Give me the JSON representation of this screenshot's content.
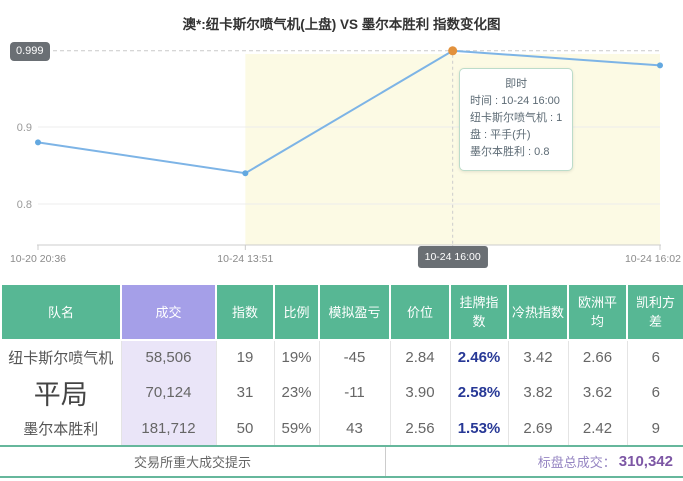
{
  "chart_data": {
    "type": "line",
    "title": "澳*:纽卡斯尔喷气机(上盘) VS 墨尔本胜利 指数变化图",
    "x": [
      "10-20 20:36",
      "10-24 13:51",
      "10-24 16:00",
      "10-24 16:02"
    ],
    "series": [
      {
        "name": "指数",
        "values": [
          0.88,
          0.84,
          0.999,
          0.98
        ]
      }
    ],
    "y_ticks": [
      0.9,
      0.8
    ],
    "y_max_line": 0.999,
    "ylim": [
      0.75,
      1.02
    ],
    "grid": true,
    "legend": "none",
    "active_index": 2,
    "highlight_from_index": 1,
    "line_color": "#7db4e6",
    "point_color": "#63a8e0",
    "active_point_color": "#e2913c",
    "highlight_color": "#fcfae4",
    "tooltip": {
      "title": "即时",
      "lines": [
        "时间 : 10-24 16:00",
        "纽卡斯尔喷气机 : 1",
        "盘 : 平手(升)",
        "墨尔本胜利 : 0.8"
      ]
    }
  },
  "table": {
    "headers": [
      "队名",
      "成交",
      "指数",
      "比例",
      "模拟盈亏",
      "价位",
      "挂牌指数",
      "冷热指数",
      "欧洲平均",
      "凯利方差"
    ],
    "rows": [
      {
        "large_team": false,
        "cells": [
          "纽卡斯尔喷气机",
          "58,506",
          "19",
          "19%",
          "-45",
          "2.84",
          "2.46%",
          "3.42",
          "2.66",
          "6"
        ]
      },
      {
        "large_team": true,
        "cells": [
          "平局",
          "70,124",
          "31",
          "23%",
          "-11",
          "3.90",
          "2.58%",
          "3.82",
          "3.62",
          "6"
        ]
      },
      {
        "large_team": false,
        "cells": [
          "墨尔本胜利",
          "181,712",
          "50",
          "59%",
          "43",
          "2.56",
          "1.53%",
          "2.69",
          "2.42",
          "9"
        ]
      }
    ]
  },
  "footer": {
    "notice": "交易所重大成交提示",
    "total_label": "标盘总成交：",
    "total_value": "310,342"
  },
  "colors": {
    "header_green": "#57b794",
    "header_purple": "#a59fe8",
    "volume_col_bg": "#eae5f8",
    "listing_index_navy": "#273896",
    "footer_border_green": "#66b79c",
    "total_label_purple": "#9585c2",
    "total_value_purple": "#7d57a5",
    "axis_badge_bg": "#6a6f74"
  }
}
